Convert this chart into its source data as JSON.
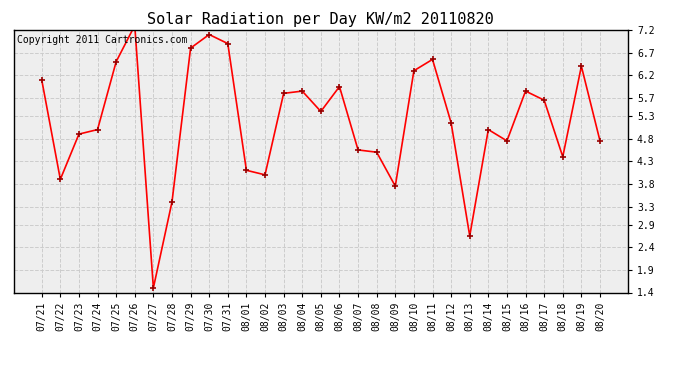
{
  "title": "Solar Radiation per Day KW/m2 20110820",
  "copyright_text": "Copyright 2011 Cartronics.com",
  "dates": [
    "07/21",
    "07/22",
    "07/23",
    "07/24",
    "07/25",
    "07/26",
    "07/27",
    "07/28",
    "07/29",
    "07/30",
    "07/31",
    "08/01",
    "08/02",
    "08/03",
    "08/04",
    "08/05",
    "08/06",
    "08/07",
    "08/08",
    "08/09",
    "08/10",
    "08/11",
    "08/12",
    "08/13",
    "08/14",
    "08/15",
    "08/16",
    "08/17",
    "08/18",
    "08/19",
    "08/20"
  ],
  "values": [
    6.1,
    3.9,
    4.9,
    5.0,
    6.5,
    7.3,
    1.5,
    3.4,
    6.8,
    7.1,
    6.9,
    4.1,
    4.0,
    5.8,
    5.85,
    5.4,
    5.95,
    4.55,
    4.5,
    3.75,
    6.3,
    6.55,
    5.15,
    2.65,
    5.0,
    4.75,
    5.85,
    5.65,
    4.4,
    6.4,
    4.75
  ],
  "y_ticks": [
    1.4,
    1.9,
    2.4,
    2.9,
    3.3,
    3.8,
    4.3,
    4.8,
    5.3,
    5.7,
    6.2,
    6.7,
    7.2
  ],
  "ylim": [
    1.4,
    7.2
  ],
  "line_color": "#ff0000",
  "bg_color": "#ffffff",
  "plot_bg_color": "#eeeeee",
  "grid_color": "#cccccc",
  "title_fontsize": 11,
  "tick_fontsize": 7,
  "copyright_fontsize": 7
}
